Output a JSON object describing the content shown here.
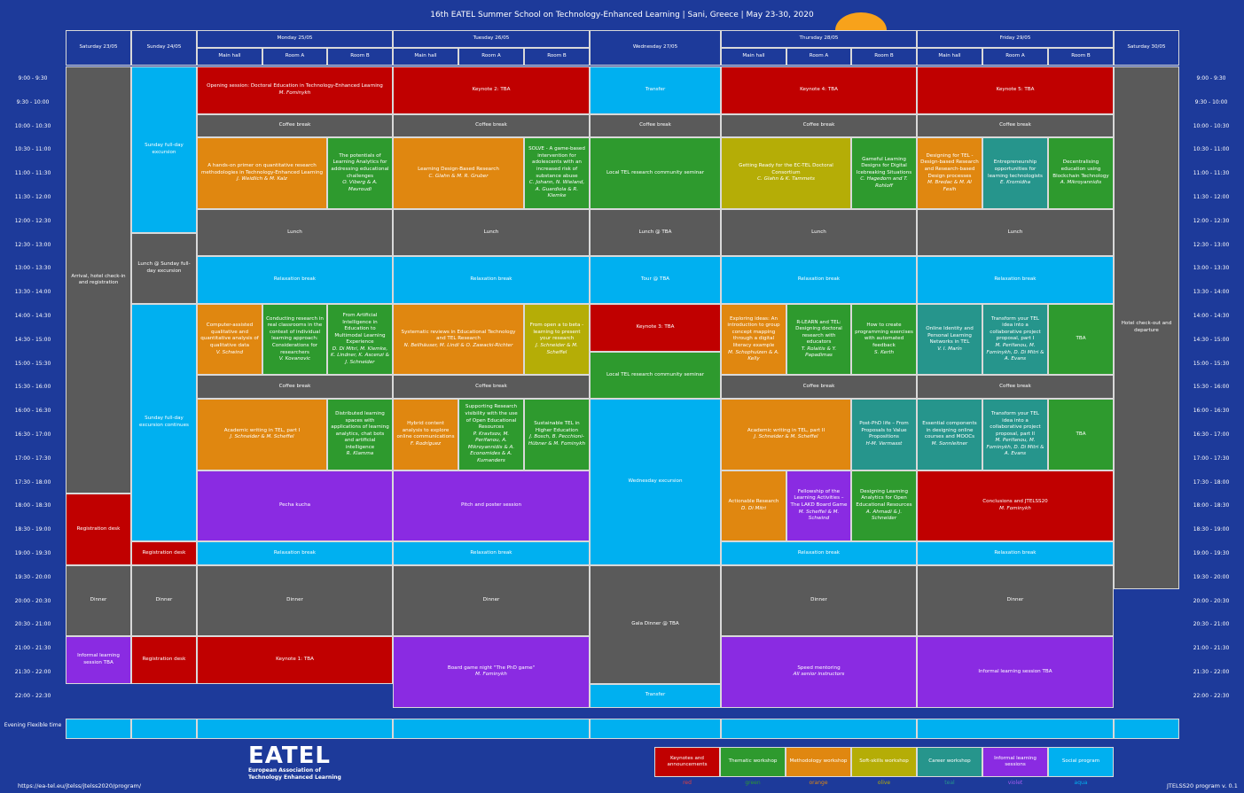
{
  "title": "16th EATEL Summer School on Technology-Enhanced Learning | Sani, Greece | May 23-30, 2020",
  "days": [
    "Saturday 23/05",
    "Sunday 24/05",
    "Monday 25/05",
    "Tuesday 26/05",
    "Wednesday 27/05",
    "Thursday 28/05",
    "Friday 29/05",
    "Saturday 30/05"
  ],
  "rooms": [
    "Main hall",
    "Room A",
    "Room B",
    "Main hall",
    "Room A",
    "Room B",
    "Main hall",
    "Room A",
    "Room B",
    "Main hall",
    "Room A",
    "Room B"
  ],
  "times": [
    "9:00 - 9:30",
    "9:30 - 10:00",
    "10:00 - 10:30",
    "10:30 - 11:00",
    "11:00 - 11:30",
    "11:30 - 12:00",
    "12:00 - 12:30",
    "12:30 - 13:00",
    "13:00 - 13:30",
    "13:30 - 14:00",
    "14:00 - 14:30",
    "14:30 - 15:00",
    "15:00 - 15:30",
    "15:30 - 16:00",
    "16:00 - 16:30",
    "16:30 - 17:00",
    "17:00 - 17:30",
    "17:30 - 18:00",
    "18:00 - 18:30",
    "18:30 - 19:00",
    "19:00 - 19:30",
    "19:30 - 20:00",
    "20:00 - 20:30",
    "20:30 - 21:00",
    "21:00 - 21:30",
    "21:30 - 22:00",
    "22:00 - 22:30"
  ],
  "evening": "Evening Flexible time",
  "events": [
    {
      "c": "gray",
      "t": "Arrival, hotel check-in and registration",
      "w": ""
    },
    {
      "c": "red",
      "t": "Registration desk",
      "w": ""
    },
    {
      "c": "gray",
      "t": "Dinner",
      "w": ""
    },
    {
      "c": "violet",
      "t": "Informal learning session TBA",
      "w": ""
    },
    {
      "c": "aqua",
      "t": "Sunday full-day excursion",
      "w": ""
    },
    {
      "c": "gray",
      "t": "Lunch @ Sunday full-day excursion",
      "w": ""
    },
    {
      "c": "aqua",
      "t": "Sunday full-day excursion continues",
      "w": ""
    },
    {
      "c": "red",
      "t": "Registration desk",
      "w": ""
    },
    {
      "c": "gray",
      "t": "Dinner",
      "w": ""
    },
    {
      "c": "red",
      "t": "Registration desk",
      "w": ""
    },
    {
      "c": "red",
      "t": "Opening session: Doctoral Education in Technology-Enhanced Learning",
      "w": "M. Fominykh"
    },
    {
      "c": "gray",
      "t": "Coffee break",
      "w": ""
    },
    {
      "c": "orange",
      "t": "A hands-on primer on quantitative research methodologies in Technology-Enhanced Learning",
      "w": "J. Weidlich & M. Kalz"
    },
    {
      "c": "green",
      "t": "The potentials of Learning Analytics for addressing educational challenges",
      "w": "O. Viberg & A. Mavroudi"
    },
    {
      "c": "gray",
      "t": "Lunch",
      "w": ""
    },
    {
      "c": "aqua",
      "t": "Relaxation break",
      "w": ""
    },
    {
      "c": "orange",
      "t": "Computer-assisted qualitative and quantitative analysis of qualitative data",
      "w": "V. Schwind"
    },
    {
      "c": "green",
      "t": "Conducting research in real classrooms in the context of individual learning approach: Considerations for researchers",
      "w": "V. Kovanovic"
    },
    {
      "c": "green",
      "t": "From Artificial Intelligence in Education to Multimodal Learning Experience",
      "w": "D. Di Mitri, M. Klemke, K. Lindner, K. Ascenzi & J. Schneider"
    },
    {
      "c": "gray",
      "t": "Coffee break",
      "w": ""
    },
    {
      "c": "orange",
      "t": "Academic writing in TEL, part I",
      "w": "J. Schneider & M. Scheffel"
    },
    {
      "c": "green",
      "t": "Distributed learning spaces with applications of learning analytics, chat bots and artificial intelligence",
      "w": "R. Klamma"
    },
    {
      "c": "violet",
      "t": "Pecha kucha",
      "w": ""
    },
    {
      "c": "aqua",
      "t": "Relaxation break",
      "w": ""
    },
    {
      "c": "gray",
      "t": "Dinner",
      "w": ""
    },
    {
      "c": "red",
      "t": "Keynote 1: TBA",
      "w": ""
    },
    {
      "c": "red",
      "t": "Keynote 2: TBA",
      "w": ""
    },
    {
      "c": "gray",
      "t": "Coffee break",
      "w": ""
    },
    {
      "c": "orange",
      "t": "Learning Design-Based Research",
      "w": "C. Glahn & M. R. Gruber"
    },
    {
      "c": "green",
      "t": "SOLVE - A game-based intervention for adolescents with an increased risk of substance abuse",
      "w": "C. Johann, N. Wieland, A. Guardiola & R. Klemke"
    },
    {
      "c": "gray",
      "t": "Lunch",
      "w": ""
    },
    {
      "c": "aqua",
      "t": "Relaxation break",
      "w": ""
    },
    {
      "c": "orange",
      "t": "Systematic reviews in Educational Technology and TEL Research",
      "w": "N. Bellhäuser, M. Lindl & O. Zawacki-Richter"
    },
    {
      "c": "olive",
      "t": "From open a to beta - learning to present your research",
      "w": "J. Schneider & M. Scheffel"
    },
    {
      "c": "gray",
      "t": "Coffee break",
      "w": ""
    },
    {
      "c": "orange",
      "t": "Hybrid content analysis to explore online communications",
      "w": "F. Rodríguez"
    },
    {
      "c": "green",
      "t": "Supporting Research visibility with the use of Open Educational Resources",
      "w": "P. Kravtsov, M. Perifanou, A. Mikroyannidis & A. Economides & A. Kumanders"
    },
    {
      "c": "green",
      "t": "Sustainable TEL in Higher Education",
      "w": "J. Bosch, B. Pecchioni-Hübner & M. Fominykh"
    },
    {
      "c": "violet",
      "t": "Pitch and poster session",
      "w": ""
    },
    {
      "c": "aqua",
      "t": "Relaxation break",
      "w": ""
    },
    {
      "c": "gray",
      "t": "Dinner",
      "w": ""
    },
    {
      "c": "violet",
      "t": "Board game night \"The PhD game\"",
      "w": "M. Fominykh"
    },
    {
      "c": "aqua",
      "t": "Transfer",
      "w": ""
    },
    {
      "c": "gray",
      "t": "Coffee break",
      "w": ""
    },
    {
      "c": "green",
      "t": "Local TEL research community seminar",
      "w": ""
    },
    {
      "c": "gray",
      "t": "Lunch @ TBA",
      "w": ""
    },
    {
      "c": "aqua",
      "t": "Tour @ TBA",
      "w": ""
    },
    {
      "c": "red",
      "t": "Keynote 3: TBA",
      "w": ""
    },
    {
      "c": "green",
      "t": "Local TEL research community seminar",
      "w": ""
    },
    {
      "c": "aqua",
      "t": "Wednesday excursion",
      "w": ""
    },
    {
      "c": "gray",
      "t": "Gala Dinner @ TBA",
      "w": ""
    },
    {
      "c": "aqua",
      "t": "Transfer",
      "w": ""
    },
    {
      "c": "red",
      "t": "Keynote 4: TBA",
      "w": ""
    },
    {
      "c": "gray",
      "t": "Coffee break",
      "w": ""
    },
    {
      "c": "olive",
      "t": "Getting Ready for the EC-TEL Doctoral Consortium",
      "w": "C. Glahn & K. Tammets"
    },
    {
      "c": "green",
      "t": "Gameful Learning Designs for Digital Icebreaking Situations",
      "w": "C. Hagedorn and T. Rohloff"
    },
    {
      "c": "gray",
      "t": "Lunch",
      "w": ""
    },
    {
      "c": "aqua",
      "t": "Relaxation break",
      "w": ""
    },
    {
      "c": "orange",
      "t": "Exploring ideas: An introduction to group concept mapping through a digital literacy example",
      "w": "M. Schophuizen & A. Kelly"
    },
    {
      "c": "green",
      "t": "R-LEARN and TEL: Designing doctoral research with educators",
      "w": "T. Rolaitis & Y. Papadimas"
    },
    {
      "c": "green",
      "t": "How to create programming exercises with automated feedback",
      "w": "S. Kerth"
    },
    {
      "c": "gray",
      "t": "Coffee break",
      "w": ""
    },
    {
      "c": "orange",
      "t": "Academic writing in TEL, part II",
      "w": "J. Schneider & M. Scheffel"
    },
    {
      "c": "teal",
      "t": "Post-PhD life – From Proposals to Value Propositions",
      "w": "H-M. Vermasst"
    },
    {
      "c": "orange",
      "t": "Actionable Research",
      "w": "D. Di Mitri"
    },
    {
      "c": "violet",
      "t": "Fellowship of the Learning Activities – The LAKD Board Game",
      "w": "M. Scheffel & M. Schwind"
    },
    {
      "c": "green",
      "t": "Designing Learning Analytics for Open Educational Resources",
      "w": "A. Ahmadi & J. Schneider"
    },
    {
      "c": "aqua",
      "t": "Relaxation break",
      "w": ""
    },
    {
      "c": "gray",
      "t": "Dinner",
      "w": ""
    },
    {
      "c": "violet",
      "t": "Speed mentoring",
      "w": "All senior instructors"
    },
    {
      "c": "red",
      "t": "Keynote 5: TBA",
      "w": ""
    },
    {
      "c": "gray",
      "t": "Coffee break",
      "w": ""
    },
    {
      "c": "orange",
      "t": "Designing for TEL - Design-based Research and Research-based Design processes",
      "w": "M. Bredac & M. Al Fesih"
    },
    {
      "c": "teal",
      "t": "Entrepreneurship opportunities for learning technologists",
      "w": "E. Kromidha"
    },
    {
      "c": "green",
      "t": "Decentralising education using Blockchain Technology",
      "w": "A. Mikroyannidis"
    },
    {
      "c": "gray",
      "t": "Lunch",
      "w": ""
    },
    {
      "c": "aqua",
      "t": "Relaxation break",
      "w": ""
    },
    {
      "c": "teal",
      "t": "Online Identity and Personal Learning Networks in TEL",
      "w": "V. I. Marín"
    },
    {
      "c": "teal",
      "t": "Transform your TEL idea into a collaborative project proposal, part I",
      "w": "M. Perifanou, M. Fominykh, D. Di Mitri & A. Evans"
    },
    {
      "c": "green",
      "t": "TBA",
      "w": ""
    },
    {
      "c": "gray",
      "t": "Coffee break",
      "w": ""
    },
    {
      "c": "teal",
      "t": "Essential components in designing online courses and MOOCs",
      "w": "M. Sonnleitner"
    },
    {
      "c": "teal",
      "t": "Transform your TEL idea into a collaborative project proposal, part II",
      "w": "M. Perifanou, M. Fominykh, D. Di Mitri & A. Evans"
    },
    {
      "c": "green",
      "t": "TBA",
      "w": ""
    },
    {
      "c": "red",
      "t": "Conclusions and JTELSS20",
      "w": "M. Fominykh"
    },
    {
      "c": "aqua",
      "t": "Relaxation break",
      "w": ""
    },
    {
      "c": "gray",
      "t": "Dinner",
      "w": ""
    },
    {
      "c": "violet",
      "t": "Informal learning session TBA",
      "w": ""
    },
    {
      "c": "gray",
      "t": "Hotel check-out and departure",
      "w": ""
    },
    {
      "c": "aqua",
      "t": "",
      "w": ""
    },
    {
      "c": "aqua",
      "t": "",
      "w": ""
    },
    {
      "c": "aqua",
      "t": "",
      "w": ""
    },
    {
      "c": "aqua",
      "t": "",
      "w": ""
    },
    {
      "c": "aqua",
      "t": "",
      "w": ""
    },
    {
      "c": "aqua",
      "t": "",
      "w": ""
    },
    {
      "c": "aqua",
      "t": "",
      "w": ""
    },
    {
      "c": "aqua",
      "t": "",
      "w": ""
    }
  ],
  "legend": [
    {
      "label": "Keynotes and announcements",
      "name": "red",
      "color": "#c00000",
      "name_color": "#e04040"
    },
    {
      "label": "Thematic workshop",
      "name": "green",
      "color": "#2e9a2e",
      "name_color": "#2e9a2e"
    },
    {
      "label": "Methodology workshop",
      "name": "orange",
      "color": "#e08710",
      "name_color": "#e08710"
    },
    {
      "label": "Soft-skills workshop",
      "name": "olive",
      "color": "#b5ad06",
      "name_color": "#b5ad06"
    },
    {
      "label": "Career workshop",
      "name": "teal",
      "color": "#26958c",
      "name_color": "#26958c"
    },
    {
      "label": "Informal learning sessions",
      "name": "violet",
      "color": "#8a2be2",
      "name_color": "#a55bf0"
    },
    {
      "label": "Social program",
      "name": "aqua",
      "color": "#00b0f0",
      "name_color": "#00b0f0"
    }
  ],
  "logo": {
    "text": "EATEL",
    "line1": "European Association of",
    "line2": "Technology Enhanced Learning"
  },
  "footer": {
    "url": "https://ea-tel.eu/jtelss/jtelss2020/program/",
    "version": "JTELSS20 program v. 0.1"
  }
}
